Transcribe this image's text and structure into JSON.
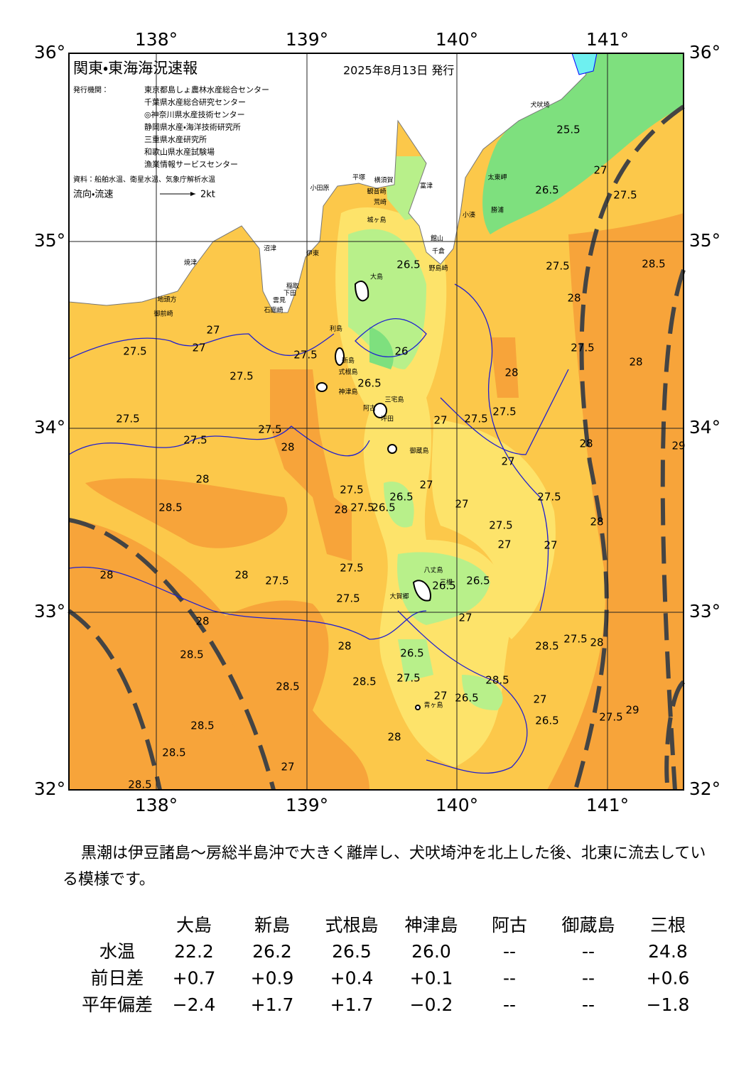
{
  "header": {
    "title": "関東・東海海況速報",
    "date": "2025年8月13日 発行",
    "issuer_label": "発行機関：",
    "issuers": [
      "東京都島しょ農林水産総合センター",
      "千葉県水産総合研究センター",
      "◎神奈川県水産技術センター",
      "静岡県水産・海洋技術研究所",
      "三重県水産研究所",
      "和歌山県水産試験場",
      "漁業情報サービスセンター"
    ],
    "source": "資料：船舶水温、衛星水温、気象庁解析水温",
    "flow_label": "流向・流速",
    "flow_scale": "2kt"
  },
  "map": {
    "lon_labels": [
      "138°",
      "139°",
      "140°",
      "141°"
    ],
    "lat_labels": [
      "36°",
      "35°",
      "34°",
      "33°",
      "32°"
    ],
    "grid": true,
    "place_names": [
      "犬吠埼",
      "太東岬",
      "勝浦",
      "小湊",
      "館山",
      "千倉",
      "野島崎",
      "富津",
      "横須賀",
      "観音崎",
      "平塚",
      "小田原",
      "荒崎",
      "城ヶ島",
      "沼津",
      "伊東",
      "稲取",
      "下田",
      "雲見",
      "石廊崎",
      "焼津",
      "地頭方",
      "御前崎",
      "大島",
      "利島",
      "新島",
      "式根島",
      "神津島",
      "三宅島",
      "阿古",
      "坪田",
      "御蔵島",
      "八丈島",
      "大賀郷",
      "三根",
      "青ヶ島"
    ],
    "contour_labels": [
      "25.5",
      "26.5",
      "27.5",
      "27",
      "28.5",
      "27.5",
      "28",
      "27",
      "27.5",
      "27.5",
      "27",
      "27.5",
      "27.5",
      "26.5",
      "26.5",
      "26",
      "27",
      "27.5",
      "28",
      "27.5",
      "27",
      "27.5",
      "27.5",
      "28",
      "28",
      "27.5",
      "28",
      "28.5",
      "27.5",
      "28",
      "28",
      "27.5",
      "28",
      "27.5",
      "27",
      "26.5",
      "26.5",
      "27.5",
      "27",
      "27.5",
      "27",
      "27",
      "27.5",
      "27",
      "27.5",
      "28",
      "28.5",
      "28.5",
      "28",
      "27.5",
      "26.5",
      "26.5",
      "28.5",
      "28.5",
      "28",
      "28",
      "28.5",
      "26.5",
      "27.5",
      "26.5",
      "27",
      "26.5",
      "27",
      "27.5",
      "28.5",
      "28.5",
      "28.5",
      "29",
      "29",
      "28",
      "27",
      "28"
    ]
  },
  "summary": "黒潮は伊豆諸島～房総半島沖で大きく離岸し、犬吠埼沖を北上した後、北東に流去している模様です。",
  "table": {
    "columns": [
      "大島",
      "新島",
      "式根島",
      "神津島",
      "阿古",
      "御蔵島",
      "三根"
    ],
    "rows": [
      {
        "label": "水温",
        "cells": [
          "22.2",
          "26.2",
          "26.5",
          "26.0",
          "--",
          "--",
          "24.8"
        ]
      },
      {
        "label": "前日差",
        "cells": [
          "+0.7",
          "+0.9",
          "+0.4",
          "+0.1",
          "--",
          "--",
          "+0.6"
        ]
      },
      {
        "label": "平年偏差",
        "cells": [
          "−2.4",
          "+1.7",
          "+1.7",
          "−0.2",
          "--",
          "--",
          "−1.8"
        ]
      }
    ]
  }
}
